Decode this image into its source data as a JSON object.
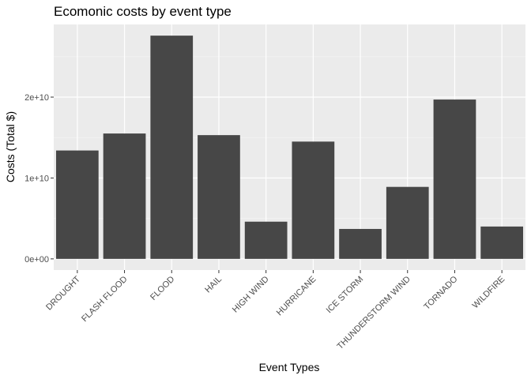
{
  "chart_data": {
    "type": "bar",
    "title": "Ecomonic costs by event type",
    "xlabel": "Event Types",
    "ylabel": "Costs (Total $)",
    "categories": [
      "DROUGHT",
      "FLASH FLOOD",
      "FLOOD",
      "HAIL",
      "HIGH WIND",
      "HURRICANE",
      "ICE STORM",
      "THUNDERSTORM WIND",
      "TORNADO",
      "WILDFIRE"
    ],
    "values": [
      13400000000,
      15500000000,
      27600000000,
      15300000000,
      4600000000,
      14500000000,
      3700000000,
      8900000000,
      19700000000,
      4000000000
    ],
    "ylim": [
      -1380000000,
      28980000000
    ],
    "yticks": [
      0,
      10000000000,
      20000000000
    ],
    "ytick_labels": [
      "0e+00",
      "1e+10",
      "2e+10"
    ],
    "grid": true,
    "colors": {
      "panel_background": "#ebebeb",
      "grid_major": "#ffffff",
      "grid_minor": "#f5f5f5",
      "bar_fill": "#474747",
      "tick_text": "#4d4d4d"
    }
  }
}
